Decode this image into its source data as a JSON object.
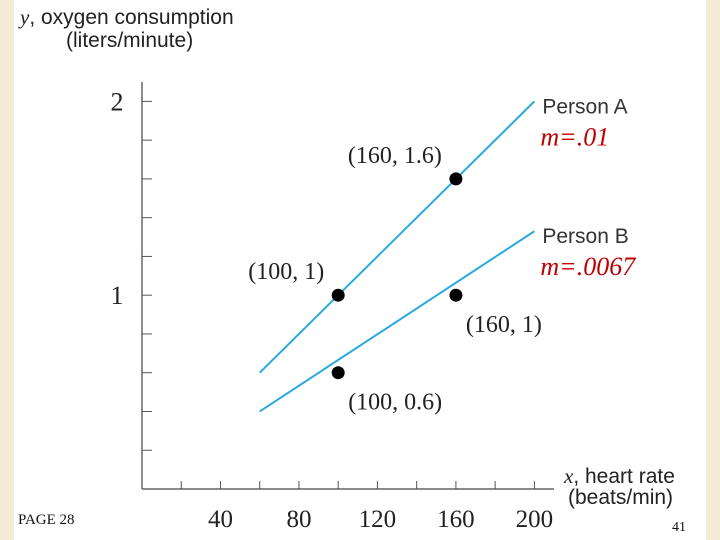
{
  "chart_data": {
    "type": "line",
    "title": "",
    "ylabel": "y, oxygen consumption (liters/minute)",
    "ylabel_parts": {
      "var": "y",
      "rest": ", oxygen consumption",
      "line2": "(liters/minute)"
    },
    "xlabel": "x, heart rate (beats/min)",
    "xlabel_parts": {
      "var": "x",
      "rest": ", heart rate",
      "line2": "(beats/min)"
    },
    "xlim": [
      0,
      210
    ],
    "ylim": [
      0,
      2.1
    ],
    "x_ticks": [
      40,
      80,
      120,
      160,
      200
    ],
    "x_tick_labels": [
      "40",
      "80",
      "120",
      "160",
      "200"
    ],
    "x_minor_step": 20,
    "y_ticks": [
      1,
      2
    ],
    "y_tick_labels": [
      "1",
      "2"
    ],
    "y_minor_step": 0.2,
    "grid": false,
    "series": [
      {
        "name": "Person A",
        "slope_label": "m=.01",
        "color": "#29a9e0",
        "x": [
          60,
          200
        ],
        "y": [
          0.6,
          2.0
        ]
      },
      {
        "name": "Person B",
        "slope_label": "m=.0067",
        "color": "#29a9e0",
        "x": [
          60,
          200
        ],
        "y": [
          0.4,
          1.33
        ]
      }
    ],
    "points": [
      {
        "x": 160,
        "y": 1.6,
        "label": "(160, 1.6)",
        "anchor": "upper-left"
      },
      {
        "x": 100,
        "y": 1.0,
        "label": "(100, 1)",
        "anchor": "upper-left"
      },
      {
        "x": 160,
        "y": 1.0,
        "label": "(160, 1)",
        "anchor": "lower-right"
      },
      {
        "x": 100,
        "y": 0.6,
        "label": "(100, 0.6)",
        "anchor": "lower-right"
      }
    ],
    "annotation_color": "#c00000",
    "marker_color": "#000000"
  },
  "footer": {
    "page_label": "PAGE 28",
    "slide_number": "41"
  }
}
